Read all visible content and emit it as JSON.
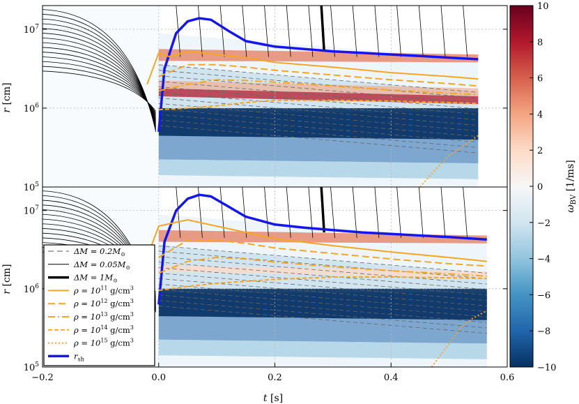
{
  "chart_data": [
    {
      "panel": "top",
      "type": "heatmap",
      "xlabel": "",
      "ylabel": "r [cm]",
      "xlim": [
        -0.2,
        0.6
      ],
      "ylim_log10": [
        5,
        7.3
      ],
      "yscale": "log",
      "y_ticks": [
        {
          "exp": "5"
        },
        {
          "exp": "6"
        },
        {
          "exp": "7"
        }
      ],
      "t_end": 0.55,
      "grid": true,
      "series": [
        {
          "label_id": "rsh",
          "color": "#1515ee",
          "x": [
            0.0,
            0.01,
            0.03,
            0.05,
            0.07,
            0.09,
            0.12,
            0.15,
            0.2,
            0.25,
            0.3,
            0.35,
            0.4,
            0.45,
            0.5,
            0.55
          ],
          "y_log10": [
            5.7,
            6.5,
            6.95,
            7.1,
            7.14,
            7.12,
            6.98,
            6.85,
            6.78,
            6.75,
            6.72,
            6.7,
            6.68,
            6.66,
            6.64,
            6.62
          ]
        },
        {
          "label_id": "rho11",
          "color": "#f5a623",
          "x": [
            -0.02,
            0.0,
            0.02,
            0.05,
            0.1,
            0.15,
            0.2,
            0.3,
            0.4,
            0.5,
            0.55
          ],
          "y_log10": [
            6.3,
            6.7,
            6.65,
            6.72,
            6.68,
            6.64,
            6.58,
            6.52,
            6.45,
            6.4,
            6.37
          ]
        },
        {
          "label_id": "rho12",
          "color": "#f5a623",
          "x": [
            0.0,
            0.05,
            0.1,
            0.15,
            0.2,
            0.3,
            0.4,
            0.5,
            0.55
          ],
          "y_log10": [
            6.4,
            6.55,
            6.55,
            6.52,
            6.48,
            6.42,
            6.36,
            6.31,
            6.28
          ]
        },
        {
          "label_id": "rho13",
          "color": "#f5a623",
          "x": [
            0.0,
            0.05,
            0.1,
            0.15,
            0.2,
            0.3,
            0.4,
            0.5,
            0.55
          ],
          "y_log10": [
            6.22,
            6.3,
            6.36,
            6.35,
            6.33,
            6.28,
            6.23,
            6.19,
            6.17
          ]
        },
        {
          "label_id": "rho14",
          "color": "#f5a623",
          "x": [
            0.0,
            0.05,
            0.1,
            0.15,
            0.2,
            0.3,
            0.4,
            0.5,
            0.55
          ],
          "y_log10": [
            5.98,
            6.0,
            6.03,
            6.07,
            6.1,
            6.1,
            6.09,
            6.07,
            6.06
          ]
        },
        {
          "label_id": "rho15",
          "color": "#f5a623",
          "x": [
            0.45,
            0.48,
            0.5,
            0.52,
            0.54,
            0.55
          ],
          "y_log10": [
            5.0,
            5.25,
            5.4,
            5.5,
            5.6,
            5.65
          ]
        }
      ]
    },
    {
      "panel": "bottom",
      "type": "heatmap",
      "xlabel": "t [s]",
      "ylabel": "r [cm]",
      "xlim": [
        -0.2,
        0.6
      ],
      "ylim_log10": [
        5,
        7.3
      ],
      "yscale": "log",
      "x_ticks": [
        "−0.2",
        "0.0",
        "0.2",
        "0.4",
        "0.6"
      ],
      "x_tick_values": [
        -0.2,
        0.0,
        0.2,
        0.4,
        0.6
      ],
      "y_ticks": [
        {
          "exp": "5"
        },
        {
          "exp": "6"
        },
        {
          "exp": "7"
        }
      ],
      "t_end": 0.565,
      "grid": true,
      "series": [
        {
          "label_id": "rsh",
          "color": "#1515ee",
          "x": [
            0.0,
            0.01,
            0.03,
            0.05,
            0.07,
            0.09,
            0.12,
            0.15,
            0.2,
            0.25,
            0.3,
            0.35,
            0.4,
            0.45,
            0.5,
            0.565
          ],
          "y_log10": [
            5.8,
            6.6,
            7.0,
            7.15,
            7.2,
            7.18,
            7.05,
            6.92,
            6.82,
            6.78,
            6.75,
            6.72,
            6.7,
            6.68,
            6.66,
            6.63
          ]
        },
        {
          "label_id": "rho11",
          "color": "#f5a623",
          "x": [
            -0.02,
            0.0,
            0.03,
            0.05,
            0.1,
            0.15,
            0.2,
            0.3,
            0.4,
            0.5,
            0.565
          ],
          "y_log10": [
            6.4,
            6.8,
            6.85,
            6.88,
            6.8,
            6.72,
            6.64,
            6.55,
            6.47,
            6.4,
            6.35
          ]
        },
        {
          "label_id": "rho12",
          "color": "#f5a623",
          "x": [
            0.0,
            0.05,
            0.1,
            0.15,
            0.2,
            0.3,
            0.4,
            0.5,
            0.565
          ],
          "y_log10": [
            6.4,
            6.62,
            6.62,
            6.58,
            6.52,
            6.45,
            6.38,
            6.32,
            6.29
          ]
        },
        {
          "label_id": "rho13",
          "color": "#f5a623",
          "x": [
            0.0,
            0.05,
            0.1,
            0.15,
            0.2,
            0.3,
            0.4,
            0.5,
            0.565
          ],
          "y_log10": [
            6.2,
            6.35,
            6.4,
            6.38,
            6.34,
            6.28,
            6.23,
            6.19,
            6.16
          ]
        },
        {
          "label_id": "rho14",
          "color": "#f5a623",
          "x": [
            0.0,
            0.05,
            0.1,
            0.2,
            0.3,
            0.4,
            0.5,
            0.565
          ],
          "y_log10": [
            5.98,
            6.03,
            6.07,
            6.12,
            6.15,
            6.15,
            6.14,
            6.13
          ]
        },
        {
          "label_id": "rho15",
          "color": "#f5a623",
          "x": [
            0.47,
            0.5,
            0.52,
            0.54,
            0.565
          ],
          "y_log10": [
            5.0,
            5.3,
            5.5,
            5.62,
            5.72
          ]
        }
      ]
    }
  ],
  "legend": {
    "placement": "lower-left of bottom panel",
    "entries": [
      {
        "id": "dm02",
        "text": "ΔM = 0.2M",
        "sub": "⊙",
        "sup": "",
        "color": "#555555",
        "dash": "8,5",
        "width": 1
      },
      {
        "id": "dm005",
        "text": "ΔM = 0.05M",
        "sub": "⊙",
        "sup": "",
        "color": "#000000",
        "dash": "",
        "width": 1
      },
      {
        "id": "dm1",
        "text": "ΔM = 1M",
        "sub": "⊙",
        "sup": "",
        "color": "#000000",
        "dash": "",
        "width": 3.5
      },
      {
        "id": "rho11",
        "text": "ρ = 10",
        "sup": "11",
        "tail": " g/cm",
        "tailsup": "3",
        "color": "#f5a623",
        "dash": "",
        "width": 2
      },
      {
        "id": "rho12",
        "text": "ρ = 10",
        "sup": "12",
        "tail": " g/cm",
        "tailsup": "3",
        "color": "#f5a623",
        "dash": "10,5",
        "width": 2
      },
      {
        "id": "rho13",
        "text": "ρ = 10",
        "sup": "13",
        "tail": " g/cm",
        "tailsup": "3",
        "color": "#f5a623",
        "dash": "10,4,2,4",
        "width": 2
      },
      {
        "id": "rho14",
        "text": "ρ = 10",
        "sup": "14",
        "tail": " g/cm",
        "tailsup": "3",
        "color": "#f5a623",
        "dash": "6,3",
        "width": 2
      },
      {
        "id": "rho15",
        "text": "ρ = 10",
        "sup": "15",
        "tail": " g/cm",
        "tailsup": "3",
        "color": "#f5a623",
        "dash": "2,3",
        "width": 2
      },
      {
        "id": "rsh",
        "text": "r",
        "sub": "sh",
        "color": "#1515ee",
        "dash": "",
        "width": 3.5
      }
    ]
  },
  "colorbar": {
    "label": "ω",
    "label_sub": "BV",
    "label_tail": " [1/ms]",
    "vmin": -10,
    "vmax": 10,
    "ticks": [
      "10",
      "8",
      "6",
      "4",
      "2",
      "0",
      "−2",
      "−4",
      "−6",
      "−8",
      "−10"
    ],
    "tick_values": [
      10,
      8,
      6,
      4,
      2,
      0,
      -2,
      -4,
      -6,
      -8,
      -10
    ],
    "colors": [
      "#053061",
      "#2166ac",
      "#4393c3",
      "#92c5de",
      "#d1e5f0",
      "#f7f7f7",
      "#fddbc7",
      "#f4a582",
      "#d6604d",
      "#b2182b",
      "#67001f"
    ]
  },
  "y_tick_base": "10",
  "x_axis_label_main": "t",
  "x_axis_label_unit": " [s]",
  "y_axis_label_main": "r",
  "y_axis_label_unit": " [cm]"
}
